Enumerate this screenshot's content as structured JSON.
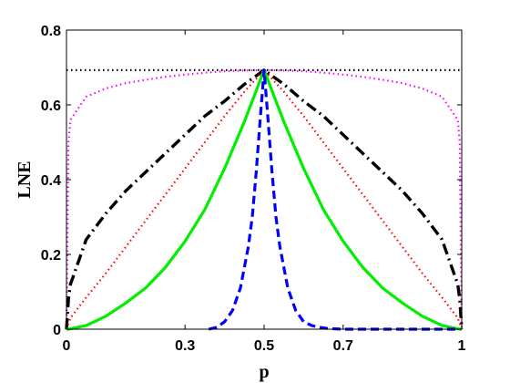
{
  "chart_data": {
    "type": "line",
    "title": "",
    "xlabel": "p",
    "ylabel": "LNE",
    "xlim": [
      0,
      1
    ],
    "ylim": [
      0,
      0.8
    ],
    "xticks": [
      0,
      0.3,
      0.5,
      0.7,
      1
    ],
    "xtick_labels": [
      "0",
      "0.3",
      "0.5",
      "0.7",
      "1"
    ],
    "yticks": [
      0,
      0.2,
      0.4,
      0.6,
      0.8
    ],
    "ytick_labels": [
      "0",
      "0.2",
      "0.4",
      "0.6",
      "0.8"
    ],
    "grid": false,
    "legend": "none",
    "x": [
      0,
      0.005,
      0.01,
      0.05,
      0.1,
      0.15,
      0.2,
      0.25,
      0.3,
      0.35,
      0.4,
      0.45,
      0.5,
      0.55,
      0.6,
      0.65,
      0.7,
      0.75,
      0.8,
      0.85,
      0.9,
      0.95,
      0.99,
      0.995,
      1
    ],
    "series": [
      {
        "color": "#000000",
        "dash": "dotted",
        "values": [
          0.693,
          0.693,
          0.693,
          0.693,
          0.693,
          0.693,
          0.693,
          0.693,
          0.693,
          0.693,
          0.693,
          0.693,
          0.693,
          0.693,
          0.693,
          0.693,
          0.693,
          0.693,
          0.693,
          0.693,
          0.693,
          0.693,
          0.693,
          0.693,
          0.693
        ]
      },
      {
        "color": "#ff00ff",
        "dash": "dotted",
        "values": [
          0.0,
          0.5,
          0.56,
          0.622,
          0.644,
          0.658,
          0.667,
          0.675,
          0.681,
          0.686,
          0.69,
          0.692,
          0.693,
          0.692,
          0.69,
          0.686,
          0.681,
          0.675,
          0.667,
          0.658,
          0.644,
          0.622,
          0.56,
          0.5,
          0.0
        ]
      },
      {
        "color": "#000000",
        "dash": "dashdot",
        "values": [
          0.0,
          0.08,
          0.12,
          0.24,
          0.31,
          0.37,
          0.42,
          0.47,
          0.52,
          0.57,
          0.61,
          0.655,
          0.693,
          0.655,
          0.61,
          0.57,
          0.52,
          0.47,
          0.42,
          0.37,
          0.31,
          0.24,
          0.12,
          0.08,
          0.0
        ]
      },
      {
        "color": "#ff0000",
        "dash": "dotted",
        "values": [
          0.0,
          0.015,
          0.03,
          0.085,
          0.15,
          0.22,
          0.29,
          0.36,
          0.43,
          0.5,
          0.57,
          0.635,
          0.693,
          0.635,
          0.57,
          0.5,
          0.43,
          0.36,
          0.29,
          0.22,
          0.15,
          0.085,
          0.03,
          0.015,
          0.0
        ]
      },
      {
        "color": "#00ee00",
        "dash": "solid",
        "values": [
          0.0,
          0.0,
          0.001,
          0.01,
          0.035,
          0.07,
          0.11,
          0.165,
          0.235,
          0.32,
          0.43,
          0.555,
          0.693,
          0.555,
          0.43,
          0.32,
          0.235,
          0.165,
          0.11,
          0.07,
          0.035,
          0.01,
          0.001,
          0.0,
          0.0
        ]
      },
      {
        "color": "#0000ff",
        "dash": "dashed",
        "x": [
          0.36,
          0.38,
          0.4,
          0.42,
          0.44,
          0.46,
          0.47,
          0.48,
          0.49,
          0.5,
          0.51,
          0.52,
          0.53,
          0.54,
          0.56,
          0.58,
          0.6,
          0.62,
          0.64,
          0.66,
          0.68,
          0.7,
          0.8,
          0.9,
          0.99
        ],
        "values": [
          0.0,
          0.005,
          0.02,
          0.05,
          0.11,
          0.22,
          0.3,
          0.42,
          0.56,
          0.693,
          0.56,
          0.42,
          0.3,
          0.22,
          0.11,
          0.05,
          0.02,
          0.01,
          0.005,
          0.002,
          0.001,
          0.0,
          0.0,
          0.0,
          0.0
        ]
      }
    ]
  }
}
